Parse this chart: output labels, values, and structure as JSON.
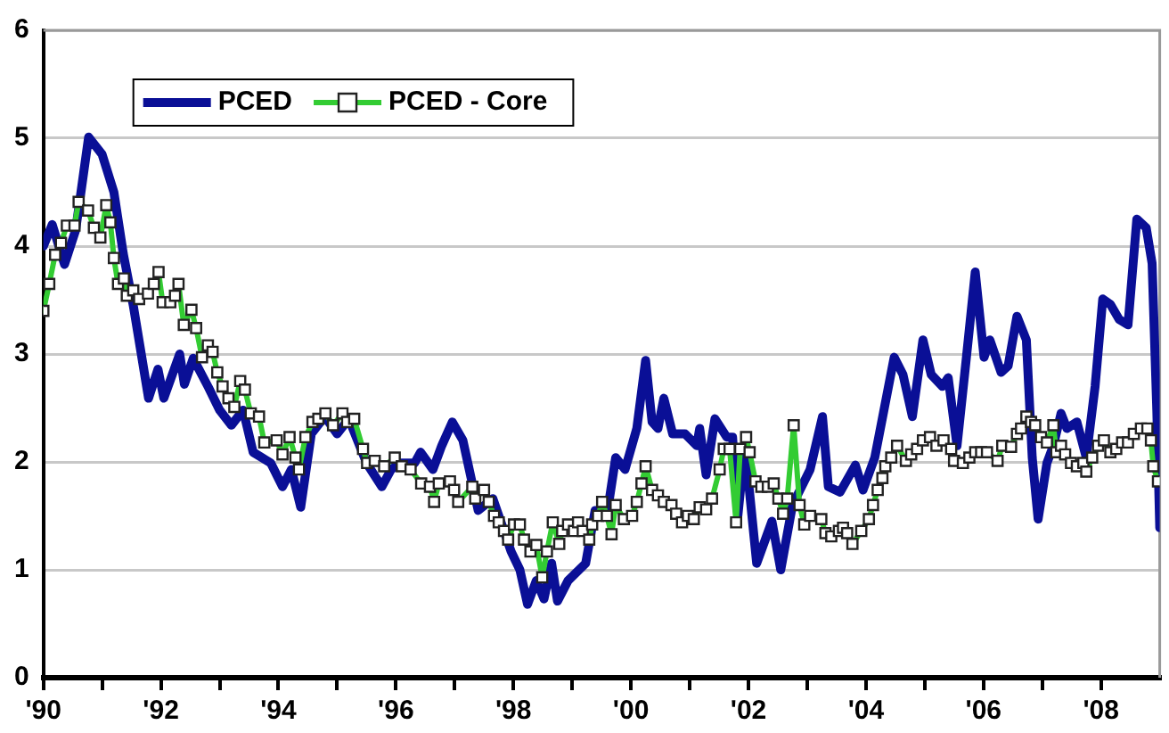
{
  "chart_data": {
    "type": "line",
    "xlim": [
      1990,
      2009
    ],
    "ylim": [
      0,
      6
    ],
    "yticks": [
      0,
      1,
      2,
      3,
      4,
      5,
      6
    ],
    "xticks": [
      {
        "value": 1990,
        "label": "'90"
      },
      {
        "value": 1991,
        "label": null
      },
      {
        "value": 1992,
        "label": "'92"
      },
      {
        "value": 1993,
        "label": null
      },
      {
        "value": 1994,
        "label": "'94"
      },
      {
        "value": 1995,
        "label": null
      },
      {
        "value": 1996,
        "label": "'96"
      },
      {
        "value": 1997,
        "label": null
      },
      {
        "value": 1998,
        "label": "'98"
      },
      {
        "value": 1999,
        "label": null
      },
      {
        "value": 2000,
        "label": "'00"
      },
      {
        "value": 2001,
        "label": null
      },
      {
        "value": 2002,
        "label": "'02"
      },
      {
        "value": 2003,
        "label": null
      },
      {
        "value": 2004,
        "label": "'04"
      },
      {
        "value": 2005,
        "label": null
      },
      {
        "value": 2006,
        "label": "'06"
      },
      {
        "value": 2007,
        "label": null
      },
      {
        "value": 2008,
        "label": "'08"
      }
    ],
    "grid": "y",
    "legend": "top left",
    "series": [
      {
        "name": "PCED",
        "color": "#0a0f96",
        "marker": "none",
        "x": [
          1990.0,
          1990.15,
          1990.36,
          1990.55,
          1990.77,
          1991.0,
          1991.2,
          1991.36,
          1991.53,
          1991.79,
          1991.95,
          1992.05,
          1992.32,
          1992.4,
          1992.55,
          1992.81,
          1993.0,
          1993.2,
          1993.4,
          1993.57,
          1993.87,
          1994.07,
          1994.22,
          1994.38,
          1994.56,
          1994.79,
          1995.0,
          1995.2,
          1995.5,
          1995.76,
          1995.92,
          1996.07,
          1996.32,
          1996.42,
          1996.63,
          1996.78,
          1996.96,
          1997.14,
          1997.4,
          1997.65,
          1997.96,
          1998.11,
          1998.24,
          1998.39,
          1998.52,
          1998.65,
          1998.75,
          1998.93,
          1999.23,
          1999.39,
          1999.59,
          1999.74,
          1999.9,
          2000.1,
          2000.25,
          2000.36,
          2000.46,
          2000.56,
          2000.71,
          2000.92,
          2001.12,
          2001.17,
          2001.28,
          2001.43,
          2001.63,
          2001.73,
          2001.82,
          2001.94,
          2002.14,
          2002.4,
          2002.55,
          2002.75,
          2003.05,
          2003.26,
          2003.36,
          2003.56,
          2003.82,
          2003.95,
          2004.15,
          2004.48,
          2004.63,
          2004.79,
          2004.97,
          2005.11,
          2005.3,
          2005.4,
          2005.55,
          2005.71,
          2005.86,
          2006.01,
          2006.11,
          2006.3,
          2006.42,
          2006.57,
          2006.73,
          2006.83,
          2006.93,
          2007.08,
          2007.19,
          2007.32,
          2007.42,
          2007.59,
          2007.75,
          2007.9,
          2008.03,
          2008.16,
          2008.31,
          2008.46,
          2008.61,
          2008.77,
          2008.87,
          2008.95,
          2009.0
        ],
        "values": [
          4.0,
          4.2,
          3.83,
          4.15,
          5.01,
          4.85,
          4.5,
          3.93,
          3.45,
          2.59,
          2.86,
          2.59,
          3.0,
          2.72,
          2.96,
          2.69,
          2.48,
          2.34,
          2.48,
          2.09,
          1.99,
          1.77,
          1.93,
          1.58,
          2.26,
          2.42,
          2.26,
          2.4,
          1.99,
          1.77,
          1.93,
          1.99,
          1.99,
          2.09,
          1.93,
          2.15,
          2.37,
          2.2,
          1.55,
          1.66,
          1.17,
          1.0,
          0.68,
          0.9,
          0.73,
          1.06,
          0.71,
          0.9,
          1.06,
          1.55,
          1.5,
          2.04,
          1.93,
          2.31,
          2.94,
          2.37,
          2.31,
          2.59,
          2.26,
          2.26,
          2.15,
          2.31,
          1.88,
          2.4,
          2.23,
          2.23,
          1.5,
          2.15,
          1.06,
          1.45,
          1.0,
          1.6,
          1.93,
          2.42,
          1.77,
          1.72,
          1.97,
          1.74,
          2.04,
          2.97,
          2.81,
          2.42,
          3.13,
          2.81,
          2.7,
          2.78,
          2.15,
          2.97,
          3.76,
          2.97,
          3.13,
          2.83,
          2.89,
          3.35,
          3.13,
          2.04,
          1.47,
          1.99,
          2.15,
          2.45,
          2.31,
          2.37,
          2.04,
          2.7,
          3.51,
          3.46,
          3.32,
          3.27,
          4.25,
          4.17,
          3.84,
          2.48,
          1.39
        ]
      },
      {
        "name": "PCED - Core",
        "color": "#33cc33",
        "marker": "square",
        "x": [
          1990.0,
          1990.1,
          1990.2,
          1990.3,
          1990.4,
          1990.53,
          1990.6,
          1990.76,
          1990.86,
          1990.97,
          1991.07,
          1991.14,
          1991.2,
          1991.27,
          1991.37,
          1991.42,
          1991.53,
          1991.63,
          1991.78,
          1991.88,
          1991.96,
          1992.03,
          1992.16,
          1992.24,
          1992.3,
          1992.39,
          1992.52,
          1992.6,
          1992.7,
          1992.8,
          1992.88,
          1992.96,
          1993.05,
          1993.15,
          1993.25,
          1993.35,
          1993.43,
          1993.53,
          1993.67,
          1993.76,
          1993.97,
          1994.07,
          1994.19,
          1994.29,
          1994.35,
          1994.46,
          1994.58,
          1994.68,
          1994.8,
          1994.93,
          1995.09,
          1995.17,
          1995.29,
          1995.44,
          1995.51,
          1995.64,
          1995.8,
          1995.98,
          1996.1,
          1996.25,
          1996.43,
          1996.58,
          1996.65,
          1996.73,
          1996.92,
          1996.99,
          1997.06,
          1997.3,
          1997.35,
          1997.5,
          1997.58,
          1997.67,
          1997.75,
          1997.84,
          1997.91,
          1998.01,
          1998.11,
          1998.18,
          1998.29,
          1998.39,
          1998.49,
          1998.57,
          1998.67,
          1998.78,
          1998.83,
          1998.93,
          1999.03,
          1999.1,
          1999.18,
          1999.29,
          1999.34,
          1999.44,
          1999.51,
          1999.59,
          1999.67,
          1999.74,
          1999.88,
          2000.02,
          2000.1,
          2000.18,
          2000.25,
          2000.36,
          2000.46,
          2000.56,
          2000.69,
          2000.77,
          2000.87,
          2000.97,
          2001.07,
          2001.17,
          2001.28,
          2001.38,
          2001.51,
          2001.58,
          2001.68,
          2001.79,
          2001.86,
          2001.96,
          2002.02,
          2002.12,
          2002.22,
          2002.33,
          2002.43,
          2002.51,
          2002.59,
          2002.66,
          2002.77,
          2002.87,
          2002.95,
          2003.05,
          2003.24,
          2003.31,
          2003.41,
          2003.54,
          2003.61,
          2003.68,
          2003.77,
          2003.92,
          2004.05,
          2004.12,
          2004.2,
          2004.28,
          2004.33,
          2004.43,
          2004.53,
          2004.68,
          2004.77,
          2004.87,
          2004.97,
          2005.09,
          2005.2,
          2005.32,
          2005.45,
          2005.5,
          2005.65,
          2005.76,
          2005.86,
          2005.96,
          2006.06,
          2006.24,
          2006.32,
          2006.47,
          2006.57,
          2006.64,
          2006.73,
          2006.81,
          2006.88,
          2006.98,
          2007.08,
          2007.19,
          2007.24,
          2007.32,
          2007.39,
          2007.49,
          2007.59,
          2007.7,
          2007.75,
          2007.85,
          2007.95,
          2008.05,
          2008.16,
          2008.26,
          2008.36,
          2008.46,
          2008.56,
          2008.68,
          2008.79,
          2008.85,
          2008.89,
          2008.97
        ],
        "values": [
          3.4,
          3.65,
          3.92,
          4.03,
          4.19,
          4.19,
          4.41,
          4.33,
          4.17,
          4.08,
          4.38,
          4.22,
          3.89,
          3.65,
          3.7,
          3.54,
          3.59,
          3.51,
          3.56,
          3.65,
          3.76,
          3.48,
          3.48,
          3.54,
          3.65,
          3.27,
          3.41,
          3.24,
          2.97,
          3.08,
          3.02,
          2.83,
          2.7,
          2.59,
          2.51,
          2.75,
          2.67,
          2.45,
          2.42,
          2.18,
          2.2,
          2.07,
          2.23,
          2.04,
          1.93,
          2.23,
          2.37,
          2.4,
          2.45,
          2.34,
          2.45,
          2.37,
          2.4,
          2.12,
          1.99,
          2.01,
          1.96,
          2.04,
          1.96,
          1.93,
          1.8,
          1.77,
          1.63,
          1.8,
          1.82,
          1.74,
          1.63,
          1.77,
          1.66,
          1.74,
          1.63,
          1.5,
          1.44,
          1.36,
          1.28,
          1.42,
          1.42,
          1.28,
          1.17,
          1.23,
          0.93,
          1.17,
          1.44,
          1.24,
          1.36,
          1.42,
          1.36,
          1.44,
          1.36,
          1.28,
          1.42,
          1.5,
          1.63,
          1.5,
          1.33,
          1.6,
          1.47,
          1.5,
          1.63,
          1.8,
          1.96,
          1.74,
          1.69,
          1.63,
          1.6,
          1.52,
          1.44,
          1.5,
          1.47,
          1.58,
          1.56,
          1.66,
          1.93,
          2.12,
          2.12,
          1.44,
          2.12,
          2.23,
          2.09,
          1.82,
          1.77,
          1.77,
          1.8,
          1.66,
          1.52,
          1.66,
          2.34,
          1.6,
          1.42,
          1.5,
          1.47,
          1.34,
          1.31,
          1.36,
          1.39,
          1.34,
          1.24,
          1.36,
          1.47,
          1.6,
          1.74,
          1.85,
          1.96,
          2.04,
          2.15,
          2.01,
          2.07,
          2.12,
          2.2,
          2.23,
          2.15,
          2.2,
          2.12,
          2.01,
          1.99,
          2.04,
          2.09,
          2.09,
          2.09,
          2.01,
          2.15,
          2.14,
          2.26,
          2.31,
          2.42,
          2.37,
          2.34,
          2.23,
          2.18,
          2.34,
          2.09,
          2.15,
          2.07,
          1.99,
          1.96,
          1.99,
          1.91,
          2.04,
          2.15,
          2.2,
          2.09,
          2.12,
          2.18,
          2.18,
          2.26,
          2.31,
          2.31,
          2.2,
          1.96,
          1.82
        ]
      }
    ]
  }
}
